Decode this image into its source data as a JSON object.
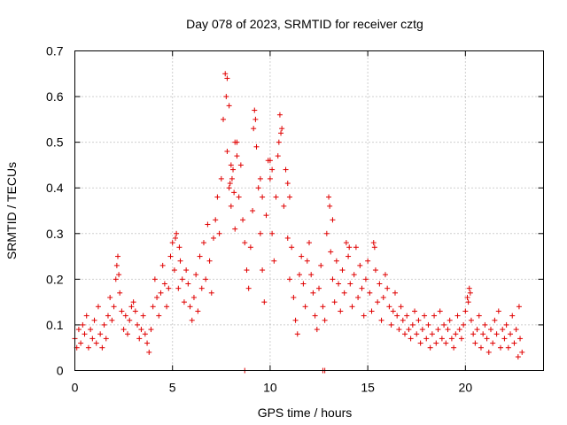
{
  "chart_data": {
    "type": "scatter",
    "title": "Day 078 of 2023, SRMTID for receiver cztg",
    "xlabel": "GPS time / hours",
    "ylabel": "SRMTID / TECUs",
    "xlim": [
      0,
      24
    ],
    "ylim": [
      0,
      0.7
    ],
    "xticks": [
      0,
      5,
      10,
      15,
      20
    ],
    "xtick_labels": [
      "0",
      "5",
      "10",
      "15",
      "20"
    ],
    "yticks": [
      0,
      0.1,
      0.2,
      0.3,
      0.4,
      0.5,
      0.6,
      0.7
    ],
    "ytick_labels": [
      "0",
      "0.1",
      "0.2",
      "0.3",
      "0.4",
      "0.5",
      "0.6",
      "0.7"
    ],
    "grid": true,
    "marker": "+",
    "color": "#e00000",
    "series": [
      {
        "name": "SRMTID",
        "points": [
          [
            0.0,
            0.07
          ],
          [
            0.1,
            0.05
          ],
          [
            0.2,
            0.09
          ],
          [
            0.3,
            0.06
          ],
          [
            0.4,
            0.1
          ],
          [
            0.5,
            0.08
          ],
          [
            0.6,
            0.12
          ],
          [
            0.7,
            0.05
          ],
          [
            0.8,
            0.09
          ],
          [
            0.9,
            0.07
          ],
          [
            1.0,
            0.11
          ],
          [
            1.1,
            0.06
          ],
          [
            1.2,
            0.14
          ],
          [
            1.3,
            0.08
          ],
          [
            1.4,
            0.05
          ],
          [
            1.5,
            0.1
          ],
          [
            1.6,
            0.07
          ],
          [
            1.7,
            0.12
          ],
          [
            1.8,
            0.16
          ],
          [
            1.9,
            0.11
          ],
          [
            2.0,
            0.14
          ],
          [
            2.1,
            0.2
          ],
          [
            2.2,
            0.25
          ],
          [
            2.3,
            0.17
          ],
          [
            2.4,
            0.13
          ],
          [
            2.5,
            0.09
          ],
          [
            2.6,
            0.12
          ],
          [
            2.7,
            0.08
          ],
          [
            2.8,
            0.11
          ],
          [
            2.9,
            0.14
          ],
          [
            3.0,
            0.15
          ],
          [
            3.1,
            0.13
          ],
          [
            3.2,
            0.1
          ],
          [
            3.3,
            0.07
          ],
          [
            3.4,
            0.09
          ],
          [
            3.5,
            0.12
          ],
          [
            3.6,
            0.08
          ],
          [
            3.7,
            0.06
          ],
          [
            3.8,
            0.04
          ],
          [
            3.9,
            0.09
          ],
          [
            4.0,
            0.14
          ],
          [
            4.1,
            0.2
          ],
          [
            4.2,
            0.16
          ],
          [
            4.3,
            0.12
          ],
          [
            4.4,
            0.17
          ],
          [
            4.5,
            0.23
          ],
          [
            4.6,
            0.19
          ],
          [
            4.7,
            0.14
          ],
          [
            4.8,
            0.18
          ],
          [
            4.9,
            0.25
          ],
          [
            5.0,
            0.28
          ],
          [
            5.1,
            0.22
          ],
          [
            5.2,
            0.3
          ],
          [
            5.3,
            0.18
          ],
          [
            5.4,
            0.24
          ],
          [
            5.5,
            0.2
          ],
          [
            5.6,
            0.15
          ],
          [
            5.7,
            0.22
          ],
          [
            5.8,
            0.19
          ],
          [
            5.9,
            0.14
          ],
          [
            6.0,
            0.11
          ],
          [
            6.1,
            0.16
          ],
          [
            6.2,
            0.21
          ],
          [
            6.3,
            0.13
          ],
          [
            6.4,
            0.25
          ],
          [
            6.5,
            0.18
          ],
          [
            6.6,
            0.28
          ],
          [
            6.7,
            0.2
          ],
          [
            6.8,
            0.32
          ],
          [
            6.9,
            0.24
          ],
          [
            7.0,
            0.17
          ],
          [
            7.1,
            0.29
          ],
          [
            7.2,
            0.33
          ],
          [
            7.3,
            0.38
          ],
          [
            7.4,
            0.3
          ],
          [
            7.5,
            0.42
          ],
          [
            7.6,
            0.55
          ],
          [
            7.7,
            0.65
          ],
          [
            7.8,
            0.48
          ],
          [
            7.9,
            0.4
          ],
          [
            8.0,
            0.36
          ],
          [
            8.1,
            0.44
          ],
          [
            8.2,
            0.31
          ],
          [
            8.3,
            0.5
          ],
          [
            8.4,
            0.38
          ],
          [
            8.5,
            0.45
          ],
          [
            8.6,
            0.33
          ],
          [
            8.7,
            0.28
          ],
          [
            8.8,
            0.22
          ],
          [
            8.9,
            0.18
          ],
          [
            9.0,
            0.27
          ],
          [
            9.1,
            0.35
          ],
          [
            9.2,
            0.57
          ],
          [
            9.3,
            0.49
          ],
          [
            9.4,
            0.4
          ],
          [
            9.5,
            0.3
          ],
          [
            9.6,
            0.22
          ],
          [
            9.7,
            0.15
          ],
          [
            9.8,
            0.34
          ],
          [
            9.9,
            0.46
          ],
          [
            10.0,
            0.42
          ],
          [
            10.1,
            0.3
          ],
          [
            10.2,
            0.24
          ],
          [
            10.3,
            0.38
          ],
          [
            10.4,
            0.47
          ],
          [
            10.5,
            0.56
          ],
          [
            10.6,
            0.53
          ],
          [
            10.7,
            0.36
          ],
          [
            10.8,
            0.44
          ],
          [
            10.9,
            0.29
          ],
          [
            11.0,
            0.2
          ],
          [
            11.1,
            0.27
          ],
          [
            11.2,
            0.16
          ],
          [
            11.3,
            0.11
          ],
          [
            11.4,
            0.08
          ],
          [
            11.5,
            0.21
          ],
          [
            11.6,
            0.25
          ],
          [
            11.7,
            0.19
          ],
          [
            11.8,
            0.14
          ],
          [
            11.9,
            0.24
          ],
          [
            12.0,
            0.28
          ],
          [
            12.1,
            0.21
          ],
          [
            12.2,
            0.17
          ],
          [
            12.3,
            0.12
          ],
          [
            12.4,
            0.09
          ],
          [
            12.5,
            0.18
          ],
          [
            12.6,
            0.23
          ],
          [
            12.7,
            0.14
          ],
          [
            12.8,
            0.11
          ],
          [
            12.9,
            0.3
          ],
          [
            13.0,
            0.38
          ],
          [
            13.1,
            0.26
          ],
          [
            13.2,
            0.2
          ],
          [
            13.3,
            0.15
          ],
          [
            13.4,
            0.24
          ],
          [
            13.5,
            0.19
          ],
          [
            13.6,
            0.13
          ],
          [
            13.7,
            0.22
          ],
          [
            13.8,
            0.17
          ],
          [
            13.9,
            0.28
          ],
          [
            14.0,
            0.25
          ],
          [
            14.1,
            0.19
          ],
          [
            14.2,
            0.14
          ],
          [
            14.3,
            0.21
          ],
          [
            14.4,
            0.27
          ],
          [
            14.5,
            0.16
          ],
          [
            14.6,
            0.23
          ],
          [
            14.7,
            0.18
          ],
          [
            14.8,
            0.12
          ],
          [
            14.9,
            0.2
          ],
          [
            15.0,
            0.24
          ],
          [
            15.1,
            0.17
          ],
          [
            15.2,
            0.13
          ],
          [
            15.3,
            0.28
          ],
          [
            15.4,
            0.22
          ],
          [
            15.5,
            0.15
          ],
          [
            15.6,
            0.19
          ],
          [
            15.7,
            0.11
          ],
          [
            15.8,
            0.16
          ],
          [
            15.9,
            0.21
          ],
          [
            16.0,
            0.18
          ],
          [
            16.1,
            0.14
          ],
          [
            16.2,
            0.1
          ],
          [
            16.3,
            0.13
          ],
          [
            16.4,
            0.17
          ],
          [
            16.5,
            0.12
          ],
          [
            16.6,
            0.09
          ],
          [
            16.7,
            0.14
          ],
          [
            16.8,
            0.11
          ],
          [
            16.9,
            0.08
          ],
          [
            17.0,
            0.12
          ],
          [
            17.1,
            0.09
          ],
          [
            17.2,
            0.07
          ],
          [
            17.3,
            0.1
          ],
          [
            17.4,
            0.13
          ],
          [
            17.5,
            0.08
          ],
          [
            17.6,
            0.11
          ],
          [
            17.7,
            0.06
          ],
          [
            17.8,
            0.09
          ],
          [
            17.9,
            0.12
          ],
          [
            18.0,
            0.07
          ],
          [
            18.1,
            0.1
          ],
          [
            18.2,
            0.05
          ],
          [
            18.3,
            0.08
          ],
          [
            18.4,
            0.12
          ],
          [
            18.5,
            0.06
          ],
          [
            18.6,
            0.09
          ],
          [
            18.7,
            0.13
          ],
          [
            18.8,
            0.07
          ],
          [
            18.9,
            0.1
          ],
          [
            19.0,
            0.06
          ],
          [
            19.1,
            0.09
          ],
          [
            19.2,
            0.11
          ],
          [
            19.3,
            0.07
          ],
          [
            19.4,
            0.05
          ],
          [
            19.5,
            0.08
          ],
          [
            19.6,
            0.12
          ],
          [
            19.7,
            0.09
          ],
          [
            19.8,
            0.07
          ],
          [
            19.9,
            0.1
          ],
          [
            20.0,
            0.13
          ],
          [
            20.1,
            0.16
          ],
          [
            20.2,
            0.18
          ],
          [
            20.3,
            0.11
          ],
          [
            20.4,
            0.08
          ],
          [
            20.5,
            0.06
          ],
          [
            20.6,
            0.09
          ],
          [
            20.7,
            0.12
          ],
          [
            20.8,
            0.05
          ],
          [
            20.9,
            0.08
          ],
          [
            21.0,
            0.1
          ],
          [
            21.1,
            0.07
          ],
          [
            21.2,
            0.04
          ],
          [
            21.3,
            0.09
          ],
          [
            21.4,
            0.06
          ],
          [
            21.5,
            0.11
          ],
          [
            21.6,
            0.08
          ],
          [
            21.7,
            0.13
          ],
          [
            21.8,
            0.05
          ],
          [
            21.9,
            0.09
          ],
          [
            22.0,
            0.07
          ],
          [
            22.1,
            0.1
          ],
          [
            22.2,
            0.05
          ],
          [
            22.3,
            0.08
          ],
          [
            22.4,
            0.12
          ],
          [
            22.5,
            0.06
          ],
          [
            22.6,
            0.09
          ],
          [
            22.7,
            0.03
          ],
          [
            22.8,
            0.07
          ],
          [
            22.9,
            0.04
          ],
          [
            8.7,
            0.0
          ],
          [
            12.7,
            0.0
          ],
          [
            12.8,
            0.0
          ],
          [
            7.8,
            0.64
          ],
          [
            7.75,
            0.6
          ],
          [
            7.9,
            0.58
          ],
          [
            10.55,
            0.52
          ],
          [
            10.45,
            0.5
          ],
          [
            9.25,
            0.55
          ],
          [
            9.15,
            0.53
          ],
          [
            8.2,
            0.5
          ],
          [
            8.3,
            0.47
          ],
          [
            10.0,
            0.46
          ],
          [
            10.1,
            0.44
          ],
          [
            8.0,
            0.45
          ],
          [
            8.05,
            0.42
          ],
          [
            7.95,
            0.41
          ],
          [
            8.15,
            0.39
          ],
          [
            9.5,
            0.42
          ],
          [
            9.6,
            0.38
          ],
          [
            10.9,
            0.41
          ],
          [
            11.0,
            0.38
          ],
          [
            13.05,
            0.36
          ],
          [
            13.2,
            0.33
          ],
          [
            5.15,
            0.29
          ],
          [
            5.35,
            0.27
          ],
          [
            2.15,
            0.23
          ],
          [
            2.25,
            0.21
          ],
          [
            15.35,
            0.27
          ],
          [
            14.05,
            0.27
          ],
          [
            20.25,
            0.17
          ],
          [
            20.15,
            0.15
          ],
          [
            22.75,
            0.14
          ]
        ]
      }
    ]
  }
}
